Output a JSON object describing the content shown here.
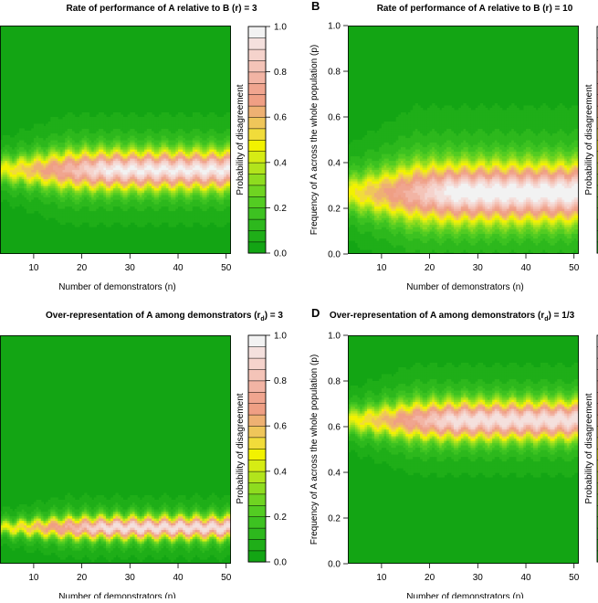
{
  "colorbar_ticks": [
    "0.0",
    "0.2",
    "0.4",
    "0.6",
    "0.8",
    "1.0"
  ],
  "colorbar_label": "Probability of disagreement",
  "colors": {
    "green": "#18a81c",
    "yellow": "#f0f000",
    "peach": "#eeb08a",
    "white": "#f2f2f2"
  },
  "chart_data": [
    {
      "type": "heatmap",
      "panel_letter": "",
      "title": "Rate of performance of A relative to B (r) = 3",
      "xlabel": "Number of demonstrators (n)",
      "ylabel": "",
      "x_ticks": [
        "10",
        "20",
        "30",
        "40",
        "50"
      ],
      "y_ticks": [],
      "xlim": [
        3,
        51
      ],
      "ylim": [
        0,
        1
      ],
      "band_center": 0.37,
      "band_half_width": 0.09,
      "peak": 0.95
    },
    {
      "type": "heatmap",
      "panel_letter": "B",
      "title": "Rate of performance of A relative to B (r) = 10",
      "xlabel": "Number of demonstrators (n)",
      "ylabel": "Frequency of A across the whole population (p)",
      "x_ticks": [
        "10",
        "20",
        "30",
        "40",
        "50"
      ],
      "y_ticks": [
        "0.0",
        "0.2",
        "0.4",
        "0.6",
        "0.8",
        "1.0"
      ],
      "xlim": [
        3,
        51
      ],
      "ylim": [
        0,
        1
      ],
      "band_center": 0.27,
      "band_half_width": 0.14,
      "peak": 1.0
    },
    {
      "type": "heatmap",
      "panel_letter": "",
      "title": "Over-representation of A among demonstrators (r",
      "title_sub": "d",
      "title_end": ") = 3",
      "xlabel": "Number of demonstrators (n)",
      "ylabel": "",
      "x_ticks": [
        "10",
        "20",
        "30",
        "40",
        "50"
      ],
      "y_ticks": [],
      "xlim": [
        3,
        51
      ],
      "ylim": [
        0,
        1
      ],
      "band_center": 0.16,
      "band_half_width": 0.05,
      "peak": 0.92
    },
    {
      "type": "heatmap",
      "panel_letter": "D",
      "title": "Over-representation of A among demonstrators (r",
      "title_sub": "d",
      "title_end": ") = 1/3",
      "xlabel": "Number of demonstrators (n)",
      "ylabel": "Frequency of A across the whole population (p)",
      "x_ticks": [
        "10",
        "20",
        "30",
        "40",
        "50"
      ],
      "y_ticks": [
        "0.0",
        "0.2",
        "0.4",
        "0.6",
        "0.8",
        "1.0"
      ],
      "xlim": [
        3,
        51
      ],
      "ylim": [
        0,
        1
      ],
      "band_center": 0.63,
      "band_half_width": 0.09,
      "peak": 0.92
    }
  ]
}
